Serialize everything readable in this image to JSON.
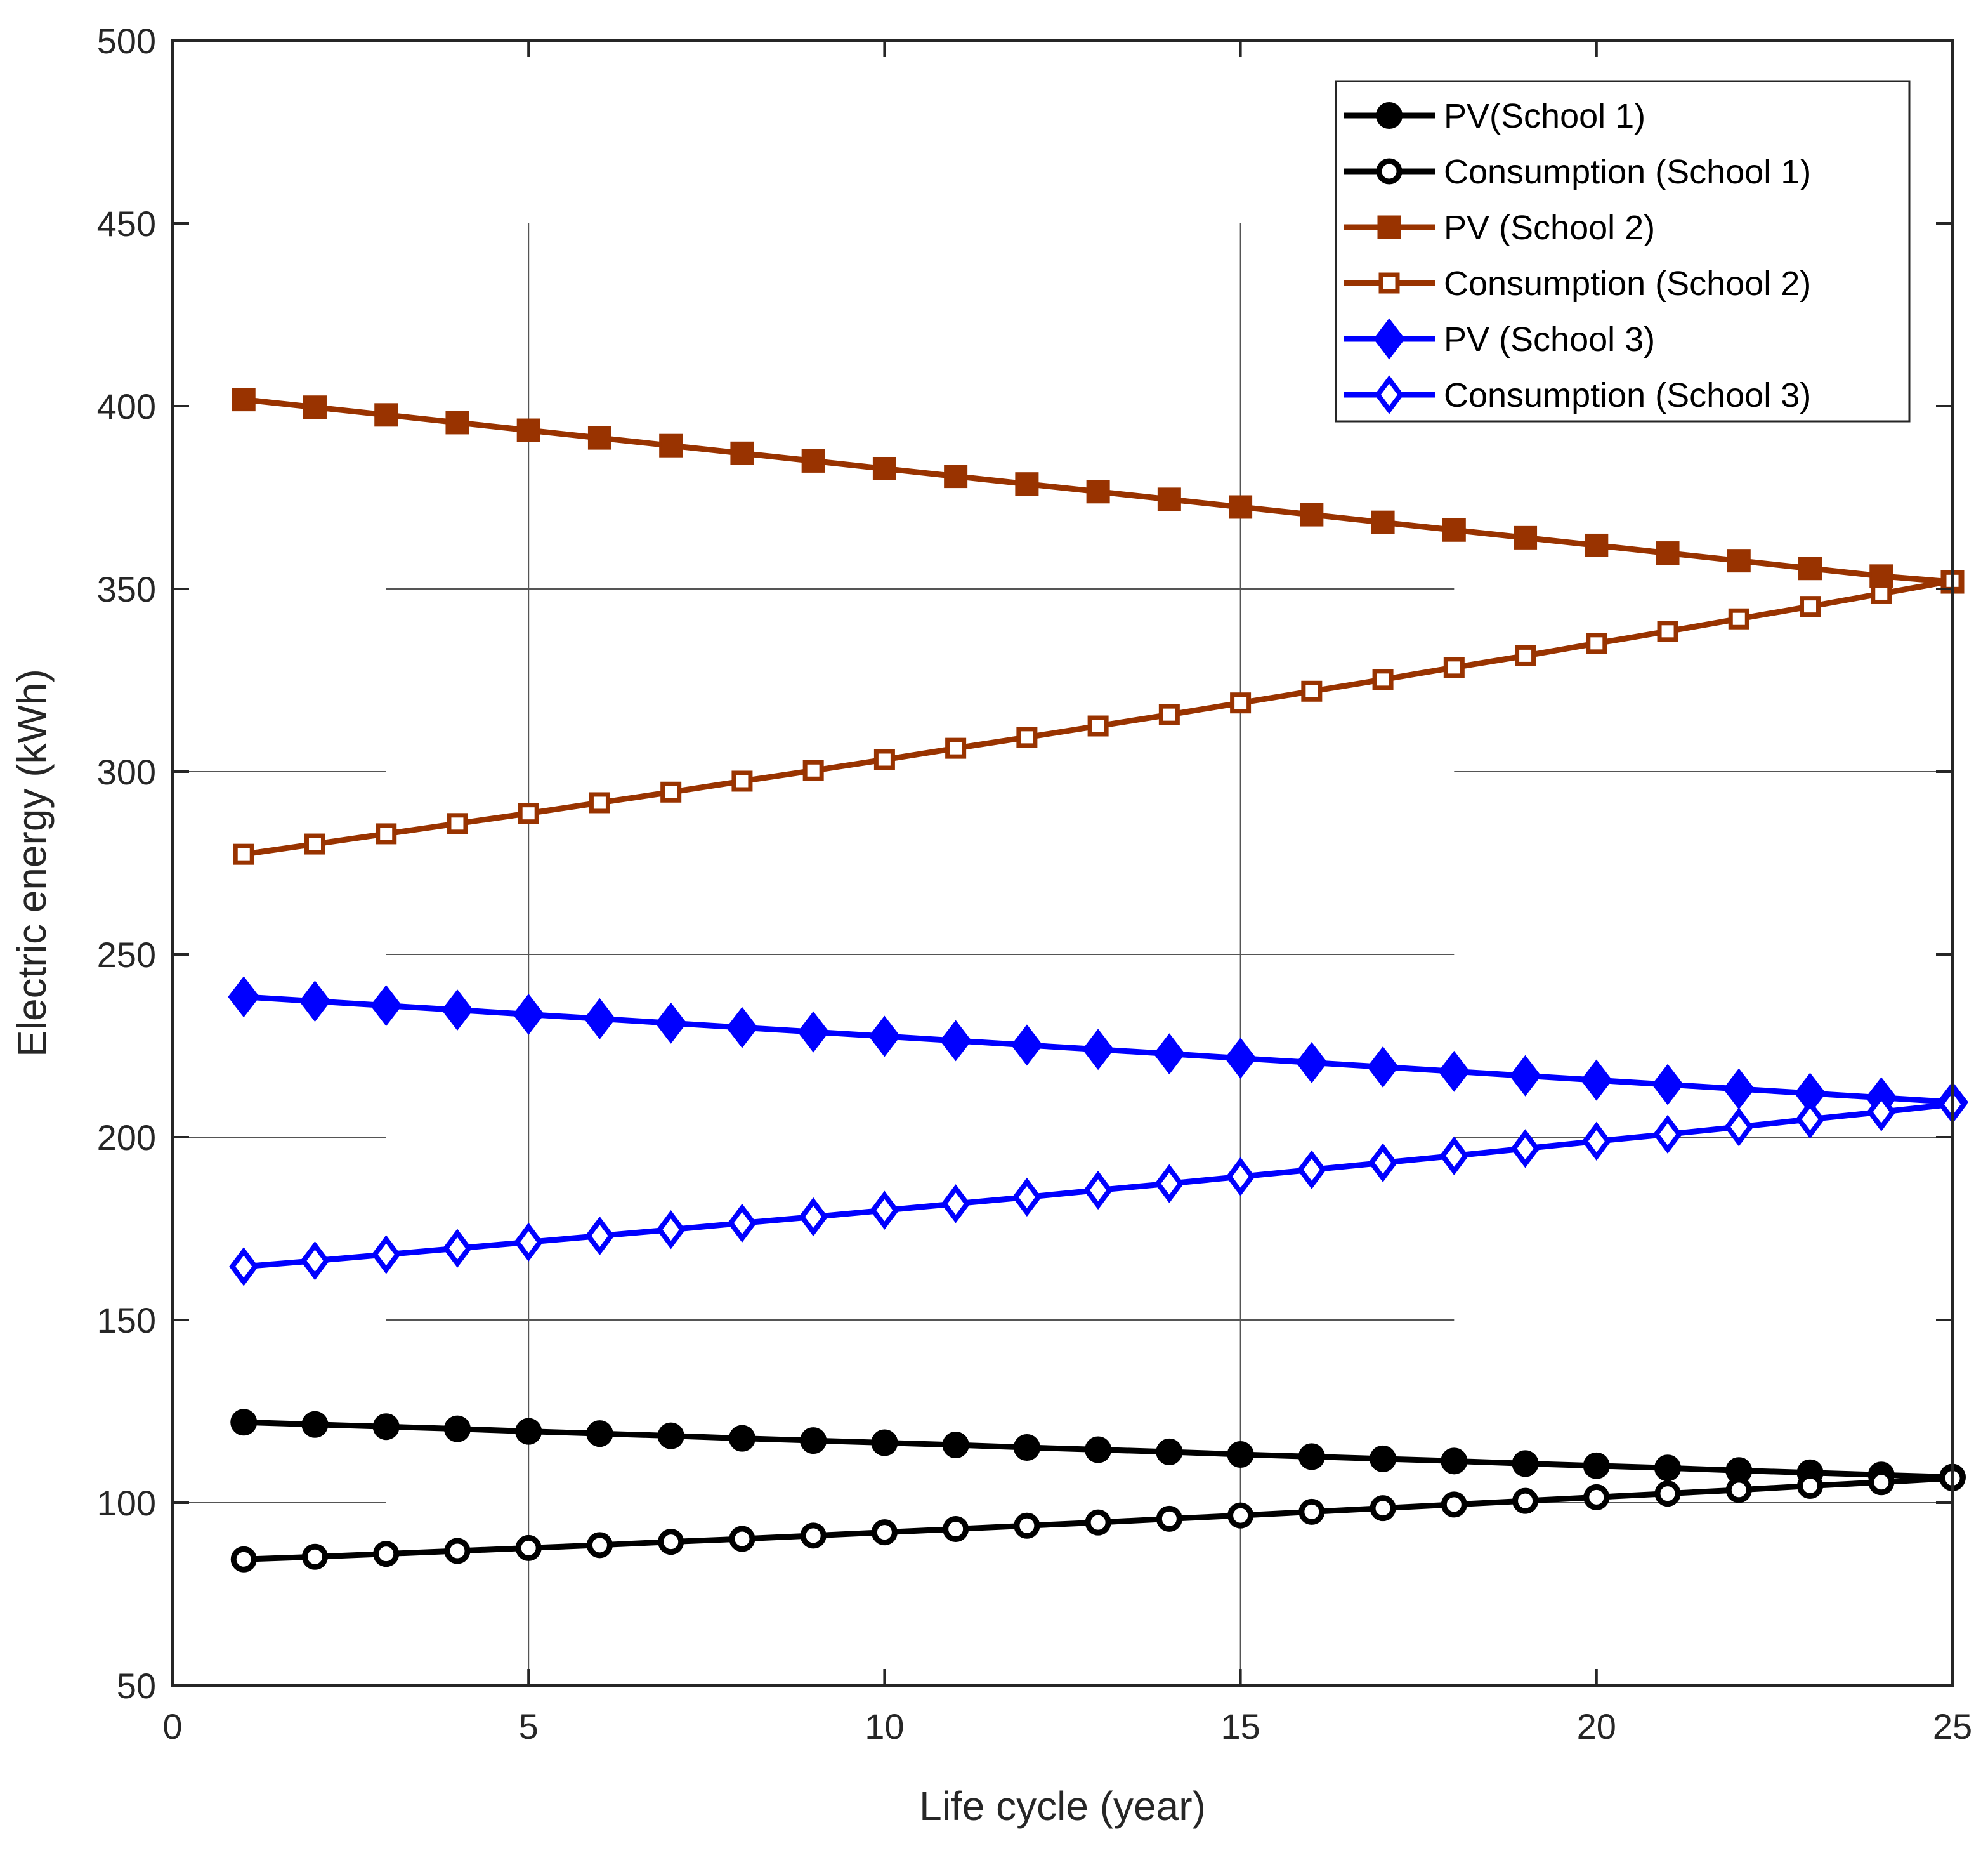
{
  "chart_data": {
    "type": "line",
    "title": "",
    "xlabel": "Life cycle (year)",
    "ylabel": "Electric energy (kWh)",
    "xlim": [
      0,
      25
    ],
    "ylim": [
      50,
      500
    ],
    "xticks": [
      "0",
      "5",
      "10",
      "15",
      "20",
      "25"
    ],
    "yticks": [
      "50",
      "100",
      "150",
      "200",
      "250",
      "300",
      "350",
      "400",
      "450",
      "500"
    ],
    "legend_position": "top-right",
    "x": [
      1,
      2,
      3,
      4,
      5,
      6,
      7,
      8,
      9,
      10,
      11,
      12,
      13,
      14,
      15,
      16,
      17,
      18,
      19,
      20,
      21,
      22,
      23,
      24,
      25
    ],
    "series": [
      {
        "name": "PV(School 1)",
        "color": "#000000",
        "marker": "circle-filled",
        "values": [
          122.0,
          121.4,
          120.8,
          120.2,
          119.5,
          118.9,
          118.3,
          117.6,
          117.0,
          116.4,
          115.8,
          115.1,
          114.5,
          113.9,
          113.2,
          112.6,
          112.0,
          111.4,
          110.7,
          110.1,
          109.5,
          108.8,
          108.2,
          107.6,
          107.0
        ]
      },
      {
        "name": "Consumption (School 1)",
        "color": "#000000",
        "marker": "circle-open",
        "values": [
          84.5,
          85.2,
          86.0,
          86.8,
          87.6,
          88.4,
          89.3,
          90.1,
          91.0,
          91.9,
          92.8,
          93.7,
          94.6,
          95.6,
          96.5,
          97.5,
          98.5,
          99.5,
          100.5,
          101.5,
          102.5,
          103.5,
          104.6,
          105.6,
          106.7
        ]
      },
      {
        "name": "PV (School 2)",
        "color": "#993300",
        "marker": "square-filled",
        "values": [
          401.8,
          399.7,
          397.6,
          395.5,
          393.4,
          391.3,
          389.2,
          387.1,
          385.0,
          382.9,
          380.8,
          378.7,
          376.6,
          374.5,
          372.4,
          370.3,
          368.2,
          366.1,
          364.0,
          361.9,
          359.8,
          357.7,
          355.6,
          353.5,
          351.9
        ]
      },
      {
        "name": "Consumption (School 2)",
        "color": "#993300",
        "marker": "square-open",
        "values": [
          277.4,
          280.2,
          283.0,
          285.8,
          288.6,
          291.5,
          294.4,
          297.4,
          300.3,
          303.3,
          306.4,
          309.4,
          312.5,
          315.6,
          318.8,
          322.0,
          325.2,
          328.5,
          331.7,
          335.1,
          338.4,
          341.8,
          345.2,
          348.7,
          352.2
        ]
      },
      {
        "name": "PV (School 3)",
        "color": "#0000ff",
        "marker": "diamond-filled",
        "values": [
          238.4,
          237.2,
          236.0,
          234.8,
          233.6,
          232.4,
          231.2,
          230.0,
          228.8,
          227.6,
          226.4,
          225.2,
          224.0,
          222.8,
          221.6,
          220.4,
          219.2,
          218.0,
          216.8,
          215.6,
          214.4,
          213.2,
          212.0,
          210.8,
          209.6
        ]
      },
      {
        "name": "Consumption (School 3)",
        "color": "#0000ff",
        "marker": "diamond-open",
        "values": [
          164.6,
          166.2,
          167.9,
          169.6,
          171.3,
          173.0,
          174.7,
          176.5,
          178.2,
          180.0,
          181.8,
          183.6,
          185.5,
          187.3,
          189.2,
          191.1,
          193.0,
          194.9,
          196.9,
          198.9,
          200.8,
          202.8,
          204.9,
          206.9,
          209.0
        ]
      }
    ]
  }
}
